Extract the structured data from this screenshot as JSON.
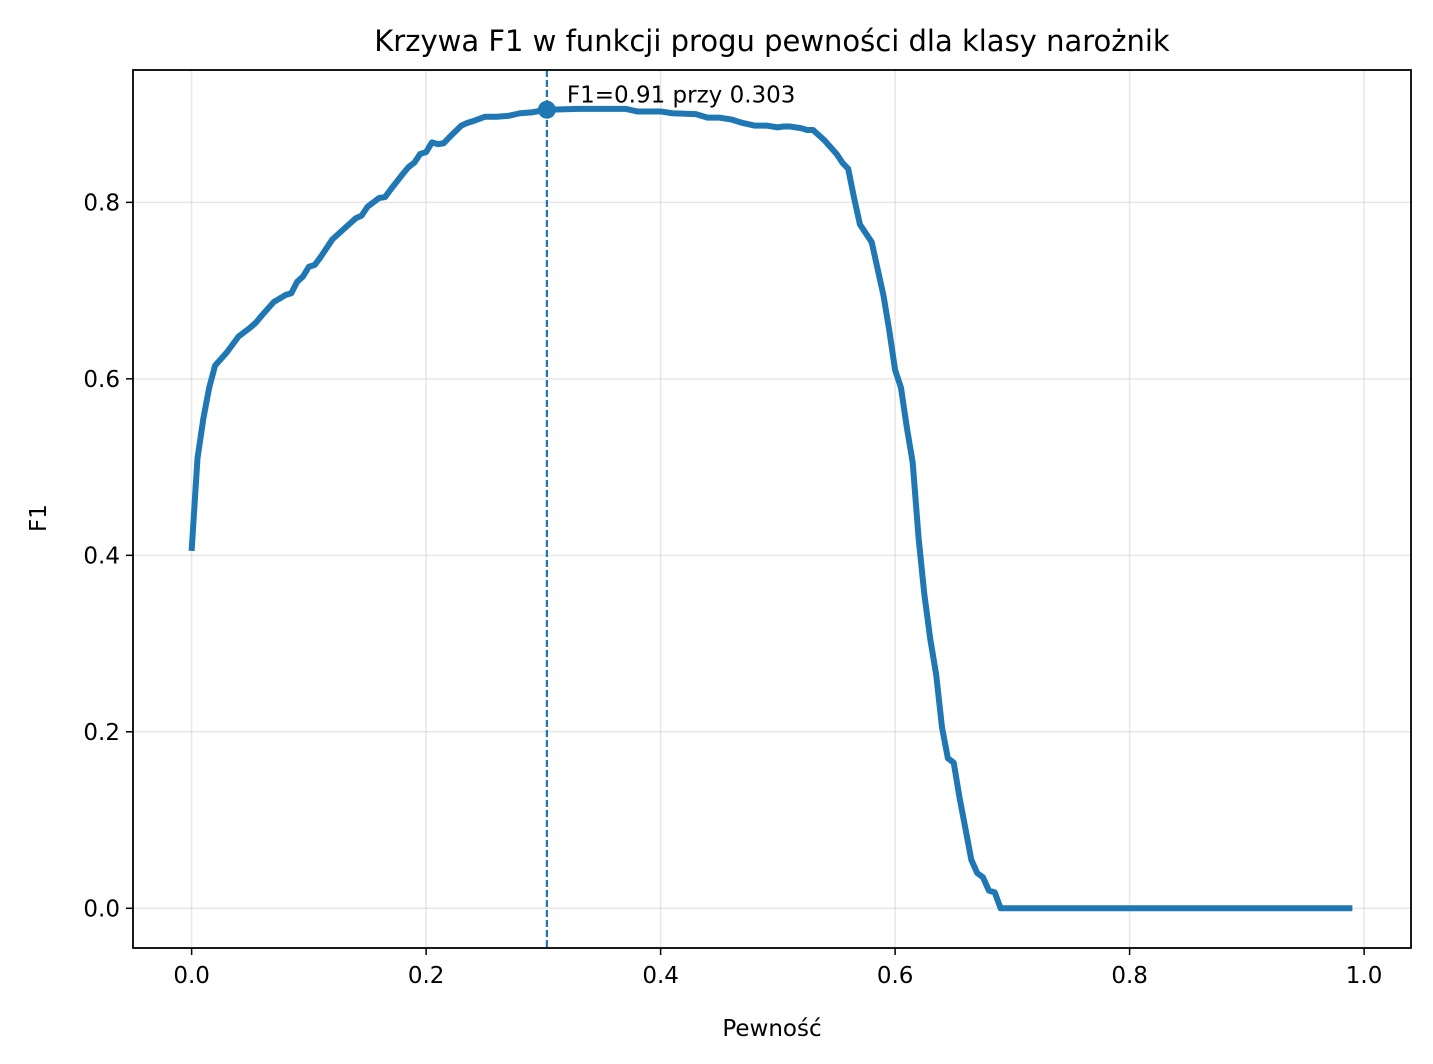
{
  "chart_data": {
    "type": "line",
    "title": "Krzywa F1 w funkcji progu pewności dla klasy narożnik",
    "xlabel": "Pewność",
    "ylabel": "F1",
    "xlim": [
      -0.05,
      1.04
    ],
    "ylim": [
      -0.045,
      0.95
    ],
    "xticks": [
      0.0,
      0.2,
      0.4,
      0.6,
      0.8,
      1.0
    ],
    "xtick_labels": [
      "0.0",
      "0.2",
      "0.4",
      "0.6",
      "0.8",
      "1.0"
    ],
    "yticks": [
      0.0,
      0.2,
      0.4,
      0.6,
      0.8
    ],
    "ytick_labels": [
      "0.0",
      "0.2",
      "0.4",
      "0.6",
      "0.8"
    ],
    "grid": true,
    "colors": {
      "line": "#1f77b4",
      "marker": "#1f77b4",
      "threshold_line": "#1f77b4"
    },
    "series": [
      {
        "x": [
          0.0,
          0.005,
          0.01,
          0.015,
          0.02,
          0.03,
          0.04,
          0.05,
          0.055,
          0.06,
          0.07,
          0.08,
          0.085,
          0.09,
          0.095,
          0.1,
          0.105,
          0.11,
          0.12,
          0.13,
          0.14,
          0.145,
          0.15,
          0.16,
          0.165,
          0.17,
          0.18,
          0.185,
          0.19,
          0.195,
          0.2,
          0.205,
          0.21,
          0.215,
          0.22,
          0.23,
          0.235,
          0.24,
          0.25,
          0.26,
          0.27,
          0.28,
          0.29,
          0.303,
          0.33,
          0.37,
          0.38,
          0.4,
          0.41,
          0.43,
          0.44,
          0.45,
          0.46,
          0.47,
          0.48,
          0.49,
          0.5,
          0.505,
          0.51,
          0.52,
          0.525,
          0.53,
          0.54,
          0.55,
          0.555,
          0.56,
          0.565,
          0.57,
          0.58,
          0.59,
          0.595,
          0.6,
          0.605,
          0.61,
          0.615,
          0.62,
          0.625,
          0.63,
          0.635,
          0.64,
          0.645,
          0.65,
          0.655,
          0.66,
          0.665,
          0.67,
          0.675,
          0.68,
          0.685,
          0.69,
          0.72,
          0.8,
          0.9,
          0.99
        ],
        "y": [
          0.405,
          0.51,
          0.555,
          0.59,
          0.615,
          0.63,
          0.648,
          0.658,
          0.664,
          0.672,
          0.687,
          0.695,
          0.697,
          0.71,
          0.716,
          0.727,
          0.729,
          0.738,
          0.758,
          0.77,
          0.782,
          0.785,
          0.795,
          0.805,
          0.806,
          0.815,
          0.832,
          0.84,
          0.845,
          0.855,
          0.857,
          0.868,
          0.866,
          0.867,
          0.874,
          0.887,
          0.89,
          0.892,
          0.897,
          0.897,
          0.898,
          0.901,
          0.902,
          0.905,
          0.906,
          0.906,
          0.903,
          0.903,
          0.901,
          0.9,
          0.896,
          0.896,
          0.894,
          0.89,
          0.887,
          0.887,
          0.885,
          0.886,
          0.886,
          0.884,
          0.882,
          0.882,
          0.87,
          0.855,
          0.845,
          0.838,
          0.805,
          0.775,
          0.755,
          0.695,
          0.655,
          0.61,
          0.59,
          0.545,
          0.505,
          0.42,
          0.355,
          0.305,
          0.265,
          0.205,
          0.17,
          0.165,
          0.125,
          0.09,
          0.055,
          0.04,
          0.035,
          0.02,
          0.018,
          0.0,
          0.0,
          0.0,
          0.0,
          0.0
        ]
      }
    ],
    "best": {
      "x": 0.303,
      "y": 0.905,
      "label": "F1=0.91 przy 0.303"
    }
  }
}
